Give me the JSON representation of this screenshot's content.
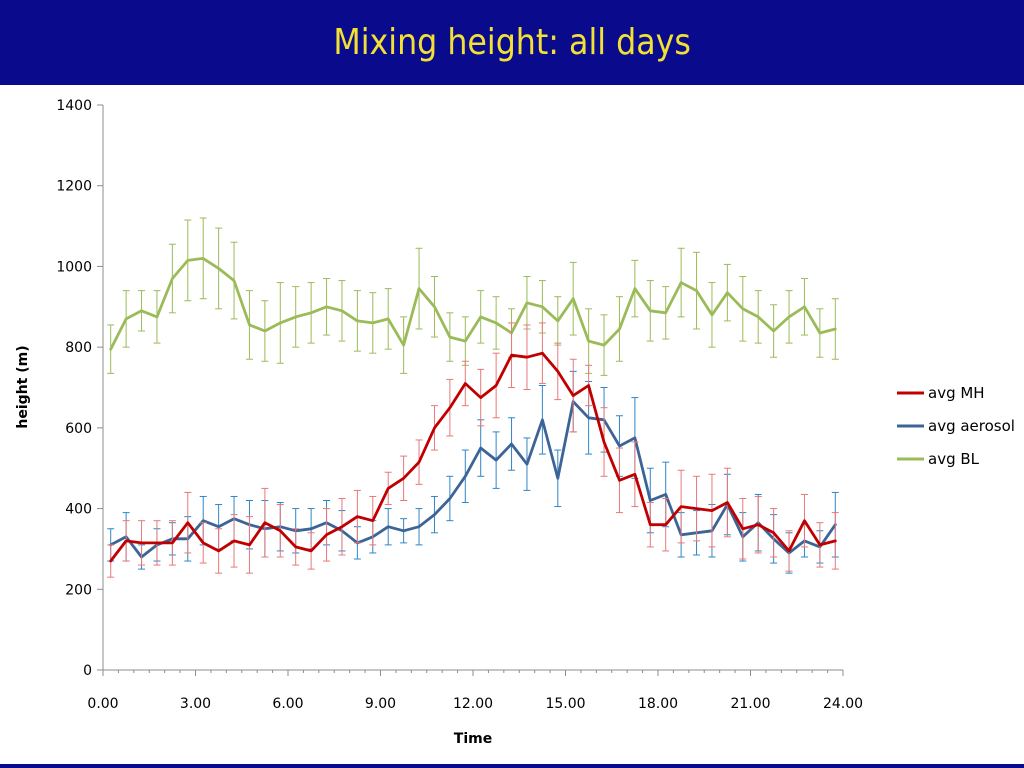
{
  "chart_data": {
    "type": "line",
    "title": "Mixing height: all days",
    "xlabel": "Time",
    "ylabel": "height (m)",
    "xlim": [
      0,
      24
    ],
    "ylim": [
      0,
      1400
    ],
    "x_ticks": [
      "0.00",
      "3.00",
      "6.00",
      "9.00",
      "12.00",
      "15.00",
      "18.00",
      "21.00",
      "24.00"
    ],
    "y_ticks": [
      "0",
      "200",
      "400",
      "600",
      "800",
      "1000",
      "1200",
      "1400"
    ],
    "grid": false,
    "legend_position": "right",
    "x": [
      0.25,
      0.75,
      1.25,
      1.75,
      2.25,
      2.75,
      3.25,
      3.75,
      4.25,
      4.75,
      5.25,
      5.75,
      6.25,
      6.75,
      7.25,
      7.75,
      8.25,
      8.75,
      9.25,
      9.75,
      10.25,
      10.75,
      11.25,
      11.75,
      12.25,
      12.75,
      13.25,
      13.75,
      14.25,
      14.75,
      15.25,
      15.75,
      16.25,
      16.75,
      17.25,
      17.75,
      18.25,
      18.75,
      19.25,
      19.75,
      20.25,
      20.75,
      21.25,
      21.75,
      22.25,
      22.75,
      23.25,
      23.75
    ],
    "series": [
      {
        "name": "avg MH",
        "color": "#c00000",
        "errcolor": "#e87878",
        "values": [
          270,
          320,
          315,
          315,
          315,
          365,
          315,
          295,
          320,
          310,
          365,
          345,
          305,
          295,
          335,
          355,
          380,
          370,
          450,
          475,
          515,
          600,
          650,
          710,
          675,
          705,
          780,
          775,
          785,
          740,
          680,
          705,
          565,
          470,
          485,
          360,
          360,
          405,
          400,
          395,
          415,
          350,
          360,
          340,
          295,
          370,
          310,
          320
        ],
        "errors": [
          40,
          50,
          55,
          55,
          55,
          75,
          50,
          55,
          65,
          70,
          85,
          65,
          45,
          45,
          65,
          70,
          65,
          60,
          40,
          55,
          55,
          55,
          70,
          55,
          70,
          80,
          80,
          80,
          75,
          70,
          90,
          50,
          85,
          80,
          80,
          55,
          65,
          90,
          80,
          90,
          85,
          75,
          70,
          60,
          50,
          65,
          55,
          70
        ]
      },
      {
        "name": "avg aerosol",
        "color": "#3c6496",
        "errcolor": "#2e86c8",
        "values": [
          310,
          330,
          280,
          310,
          325,
          325,
          370,
          355,
          375,
          360,
          350,
          355,
          345,
          350,
          365,
          345,
          315,
          330,
          355,
          345,
          355,
          385,
          425,
          480,
          550,
          520,
          560,
          510,
          620,
          475,
          665,
          625,
          620,
          555,
          575,
          420,
          435,
          335,
          340,
          345,
          410,
          330,
          365,
          325,
          290,
          320,
          305,
          360
        ],
        "errors": [
          40,
          60,
          30,
          40,
          40,
          55,
          60,
          55,
          55,
          60,
          70,
          60,
          55,
          50,
          55,
          50,
          40,
          40,
          45,
          30,
          45,
          45,
          55,
          65,
          70,
          70,
          65,
          65,
          85,
          70,
          75,
          90,
          80,
          75,
          100,
          80,
          80,
          55,
          55,
          65,
          75,
          60,
          70,
          60,
          50,
          40,
          40,
          80
        ]
      },
      {
        "name": "avg BL",
        "color": "#9bbb59",
        "errcolor": "#9bbb59",
        "values": [
          795,
          870,
          890,
          875,
          970,
          1015,
          1020,
          995,
          965,
          855,
          840,
          860,
          875,
          885,
          900,
          890,
          865,
          860,
          870,
          805,
          945,
          900,
          825,
          815,
          875,
          860,
          835,
          910,
          900,
          865,
          920,
          815,
          805,
          845,
          945,
          890,
          885,
          960,
          940,
          880,
          935,
          895,
          875,
          840,
          875,
          900,
          835,
          845
        ],
        "errors": [
          60,
          70,
          50,
          65,
          85,
          100,
          100,
          100,
          95,
          85,
          75,
          100,
          75,
          75,
          70,
          75,
          75,
          75,
          75,
          70,
          100,
          75,
          60,
          60,
          65,
          65,
          60,
          65,
          65,
          60,
          90,
          80,
          75,
          80,
          70,
          75,
          65,
          85,
          95,
          80,
          70,
          80,
          65,
          65,
          65,
          70,
          60,
          75
        ]
      }
    ]
  }
}
